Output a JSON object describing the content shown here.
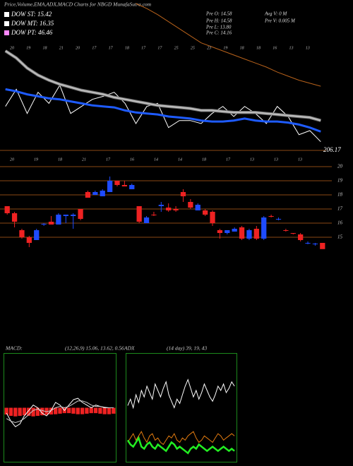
{
  "header": {
    "title": "Price,Volume,EMA,ADX,MACD Charts for NBGD MunafaSutra.com",
    "legend": [
      {
        "label": "DOW ST: 15.42",
        "color": "#ffffff"
      },
      {
        "label": "DOW MT: 16.35",
        "color": "#ffffff"
      },
      {
        "label": "DOW PT: 46.46",
        "color": "#ff88ff"
      }
    ],
    "info": [
      "Pre  O: 14.58",
      "Pre  H: 14.58",
      "Pre  L: 13.80",
      "Pre  C: 14.16",
      "Avg V: 0  M",
      "Pre  V: 0.005 M"
    ],
    "level_label": "206.17"
  },
  "chart_data": [
    {
      "type": "line",
      "ylim": [
        12,
        26
      ],
      "date_labels_top": [
        "20",
        "19",
        "18",
        "21",
        "20",
        "17",
        "17",
        "18",
        "17",
        "17",
        "25",
        "25",
        "23",
        "19",
        "18",
        "18",
        "16",
        "13",
        "13"
      ],
      "date_labels_bottom": [
        "20",
        "19",
        "18",
        "21",
        "17",
        "16",
        "14",
        "14",
        "18",
        "17",
        "13",
        "13",
        "13"
      ],
      "series": [
        {
          "name": "price",
          "color": "#ffffff",
          "width": 1,
          "values": [
            15.8,
            17.5,
            15.1,
            17.2,
            16.1,
            17.9,
            15.1,
            15.8,
            16.5,
            16.8,
            17.2,
            16.1,
            14.1,
            15.8,
            16.1,
            13.7,
            14.4,
            14.4,
            14.1,
            15.1,
            15.8,
            14.8,
            15.8,
            15.1,
            14.1,
            15.8,
            14.8,
            13.0,
            13.4,
            12.3
          ]
        },
        {
          "name": "ema-mid",
          "color": "#bbbbbb",
          "width": 2.5,
          "values": [
            21.3,
            20.6,
            19.6,
            18.9,
            18.4,
            18.0,
            17.7,
            17.4,
            17.2,
            17.0,
            16.7,
            16.5,
            16.3,
            16.1,
            15.9,
            15.8,
            15.7,
            15.6,
            15.4,
            15.4,
            15.3,
            15.2,
            15.2,
            15.2,
            15.1,
            15.0,
            14.9,
            14.8,
            14.7,
            14.4
          ]
        },
        {
          "name": "ema-short",
          "color": "#1e5bff",
          "width": 3,
          "values": [
            17.5,
            17.3,
            17.0,
            16.8,
            16.6,
            16.5,
            16.3,
            16.1,
            15.9,
            15.8,
            15.7,
            15.4,
            15.2,
            15.1,
            15.0,
            14.8,
            14.7,
            14.6,
            14.4,
            14.3,
            14.3,
            14.4,
            14.6,
            14.4,
            14.3,
            14.3,
            14.2,
            14.0,
            13.7,
            13.3
          ]
        },
        {
          "name": "ema-long",
          "color": "#b8621b",
          "width": 1,
          "values": [
            null,
            null,
            null,
            null,
            null,
            null,
            null,
            null,
            null,
            null,
            null,
            null,
            26.0,
            25.5,
            24.9,
            24.2,
            23.5,
            22.8,
            22.1,
            21.7,
            21.3,
            20.9,
            20.5,
            20.1,
            19.7,
            19.2,
            18.8,
            18.4,
            18.1,
            17.8
          ]
        }
      ]
    },
    {
      "type": "candlestick",
      "ylim": [
        14,
        20.5
      ],
      "yticks": [
        20,
        19,
        18,
        17,
        16,
        15
      ],
      "grid": true,
      "up_color": "#1e4bff",
      "down_color": "#ee2222",
      "open": [
        17.2,
        16.7,
        15.5,
        15.0,
        14.8,
        15.9,
        16.1,
        15.9,
        16.5,
        16.5,
        17.0,
        18.2,
        18.0,
        17.9,
        18.2,
        19.0,
        18.7,
        18.4,
        17.2,
        16.0,
        16.6,
        17.2,
        17.1,
        17.0,
        18.2,
        17.5,
        16.9,
        16.9,
        16.8,
        15.5,
        15.3,
        15.4,
        15.7,
        14.9,
        15.6,
        14.9,
        16.5,
        16.3,
        15.5,
        15.3,
        15.2,
        14.6,
        14.5,
        14.6
      ],
      "high": [
        17.2,
        16.8,
        15.6,
        15.1,
        15.6,
        16.0,
        16.5,
        16.7,
        16.6,
        16.7,
        17.0,
        18.3,
        18.3,
        18.4,
        19.3,
        19.0,
        19.0,
        18.8,
        17.2,
        16.5,
        16.8,
        17.5,
        17.4,
        17.2,
        18.4,
        17.7,
        17.4,
        17.0,
        16.9,
        15.6,
        15.5,
        15.7,
        15.8,
        15.6,
        15.8,
        16.5,
        16.6,
        16.4,
        15.6,
        15.3,
        15.3,
        14.7,
        14.6,
        14.6
      ],
      "low": [
        16.6,
        15.7,
        14.9,
        14.3,
        14.8,
        15.8,
        15.9,
        15.9,
        16.0,
        15.6,
        16.2,
        17.8,
        18.0,
        17.9,
        18.2,
        18.6,
        18.6,
        18.4,
        16.0,
        16.0,
        16.5,
        16.8,
        16.8,
        16.8,
        17.5,
        17.0,
        16.9,
        16.5,
        15.8,
        14.9,
        15.2,
        15.4,
        14.8,
        14.8,
        14.8,
        14.8,
        16.4,
        16.2,
        15.4,
        15.2,
        14.7,
        14.5,
        14.4,
        14.2
      ],
      "close": [
        16.7,
        16.1,
        15.0,
        14.6,
        15.5,
        15.95,
        15.9,
        16.6,
        16.6,
        16.6,
        16.3,
        17.8,
        18.2,
        18.3,
        19.0,
        18.7,
        18.6,
        18.7,
        16.1,
        16.4,
        16.55,
        17.3,
        16.9,
        16.9,
        17.9,
        17.1,
        17.3,
        16.6,
        16.0,
        15.3,
        15.5,
        15.6,
        14.9,
        15.5,
        14.9,
        16.4,
        16.45,
        16.3,
        15.45,
        15.25,
        14.8,
        14.6,
        14.55,
        14.16
      ]
    },
    {
      "type": "macd",
      "title": "MACD:",
      "params": "(12,26,9) 15.06, 13.62, 0.56",
      "ylim": [
        -2,
        2
      ],
      "hist_color": "#ee2222",
      "histogram": [
        -0.25,
        -0.3,
        -0.32,
        -0.3,
        -0.28,
        -0.3,
        -0.32,
        -0.3,
        -0.28,
        -0.26,
        -0.25,
        -0.24,
        -0.22,
        -0.2,
        -0.2,
        -0.22,
        -0.24,
        -0.24,
        -0.22,
        -0.2,
        -0.2,
        -0.22,
        -0.24,
        -0.24,
        -0.22
      ],
      "series": [
        {
          "name": "macd",
          "color": "#ffffff",
          "values": [
            -0.2,
            -0.5,
            -0.7,
            -0.6,
            -0.3,
            -0.1,
            0.1,
            0.0,
            -0.2,
            -0.3,
            -0.1,
            0.2,
            0.1,
            -0.1,
            0.1,
            0.3,
            0.35,
            0.2,
            0.1,
            0.0,
            0.1,
            0.05,
            0.0,
            0.0,
            0.0
          ]
        },
        {
          "name": "signal",
          "color": "#cccccc",
          "values": [
            -0.4,
            -0.5,
            -0.55,
            -0.5,
            -0.4,
            -0.25,
            -0.1,
            -0.05,
            -0.1,
            -0.15,
            -0.1,
            0.0,
            0.05,
            0.0,
            0.05,
            0.15,
            0.25,
            0.25,
            0.2,
            0.1,
            0.05,
            0.05,
            0.02,
            0.0,
            0.0
          ]
        }
      ]
    },
    {
      "type": "adx",
      "title": "ADX",
      "params": "(14 day) 39, 19, 43",
      "ylim": [
        0,
        100
      ],
      "series": [
        {
          "name": "adx",
          "color": "#ffffff",
          "values": [
            52,
            58,
            50,
            62,
            55,
            66,
            60,
            70,
            64,
            58,
            72,
            66,
            60,
            68,
            74,
            62,
            56,
            50,
            58,
            54,
            62,
            70,
            76,
            68,
            60,
            66,
            58,
            64,
            72,
            66,
            60,
            56,
            62,
            70,
            66,
            72,
            64,
            68,
            74,
            70
          ]
        },
        {
          "name": "di-minus",
          "color": "#e07a10",
          "values": [
            18,
            22,
            26,
            20,
            24,
            28,
            22,
            18,
            24,
            26,
            20,
            22,
            18,
            16,
            20,
            24,
            22,
            26,
            20,
            18,
            22,
            20,
            24,
            26,
            28,
            22,
            18,
            20,
            24,
            22,
            20,
            18,
            22,
            26,
            24,
            20,
            22,
            24,
            26,
            24
          ]
        },
        {
          "name": "di-plus",
          "color": "#22ee22",
          "values": [
            20,
            16,
            14,
            18,
            22,
            14,
            12,
            16,
            18,
            14,
            12,
            16,
            14,
            12,
            10,
            14,
            18,
            16,
            12,
            14,
            12,
            10,
            8,
            12,
            14,
            12,
            16,
            14,
            12,
            10,
            12,
            14,
            12,
            10,
            12,
            14,
            12,
            10,
            12,
            10
          ]
        }
      ]
    }
  ]
}
